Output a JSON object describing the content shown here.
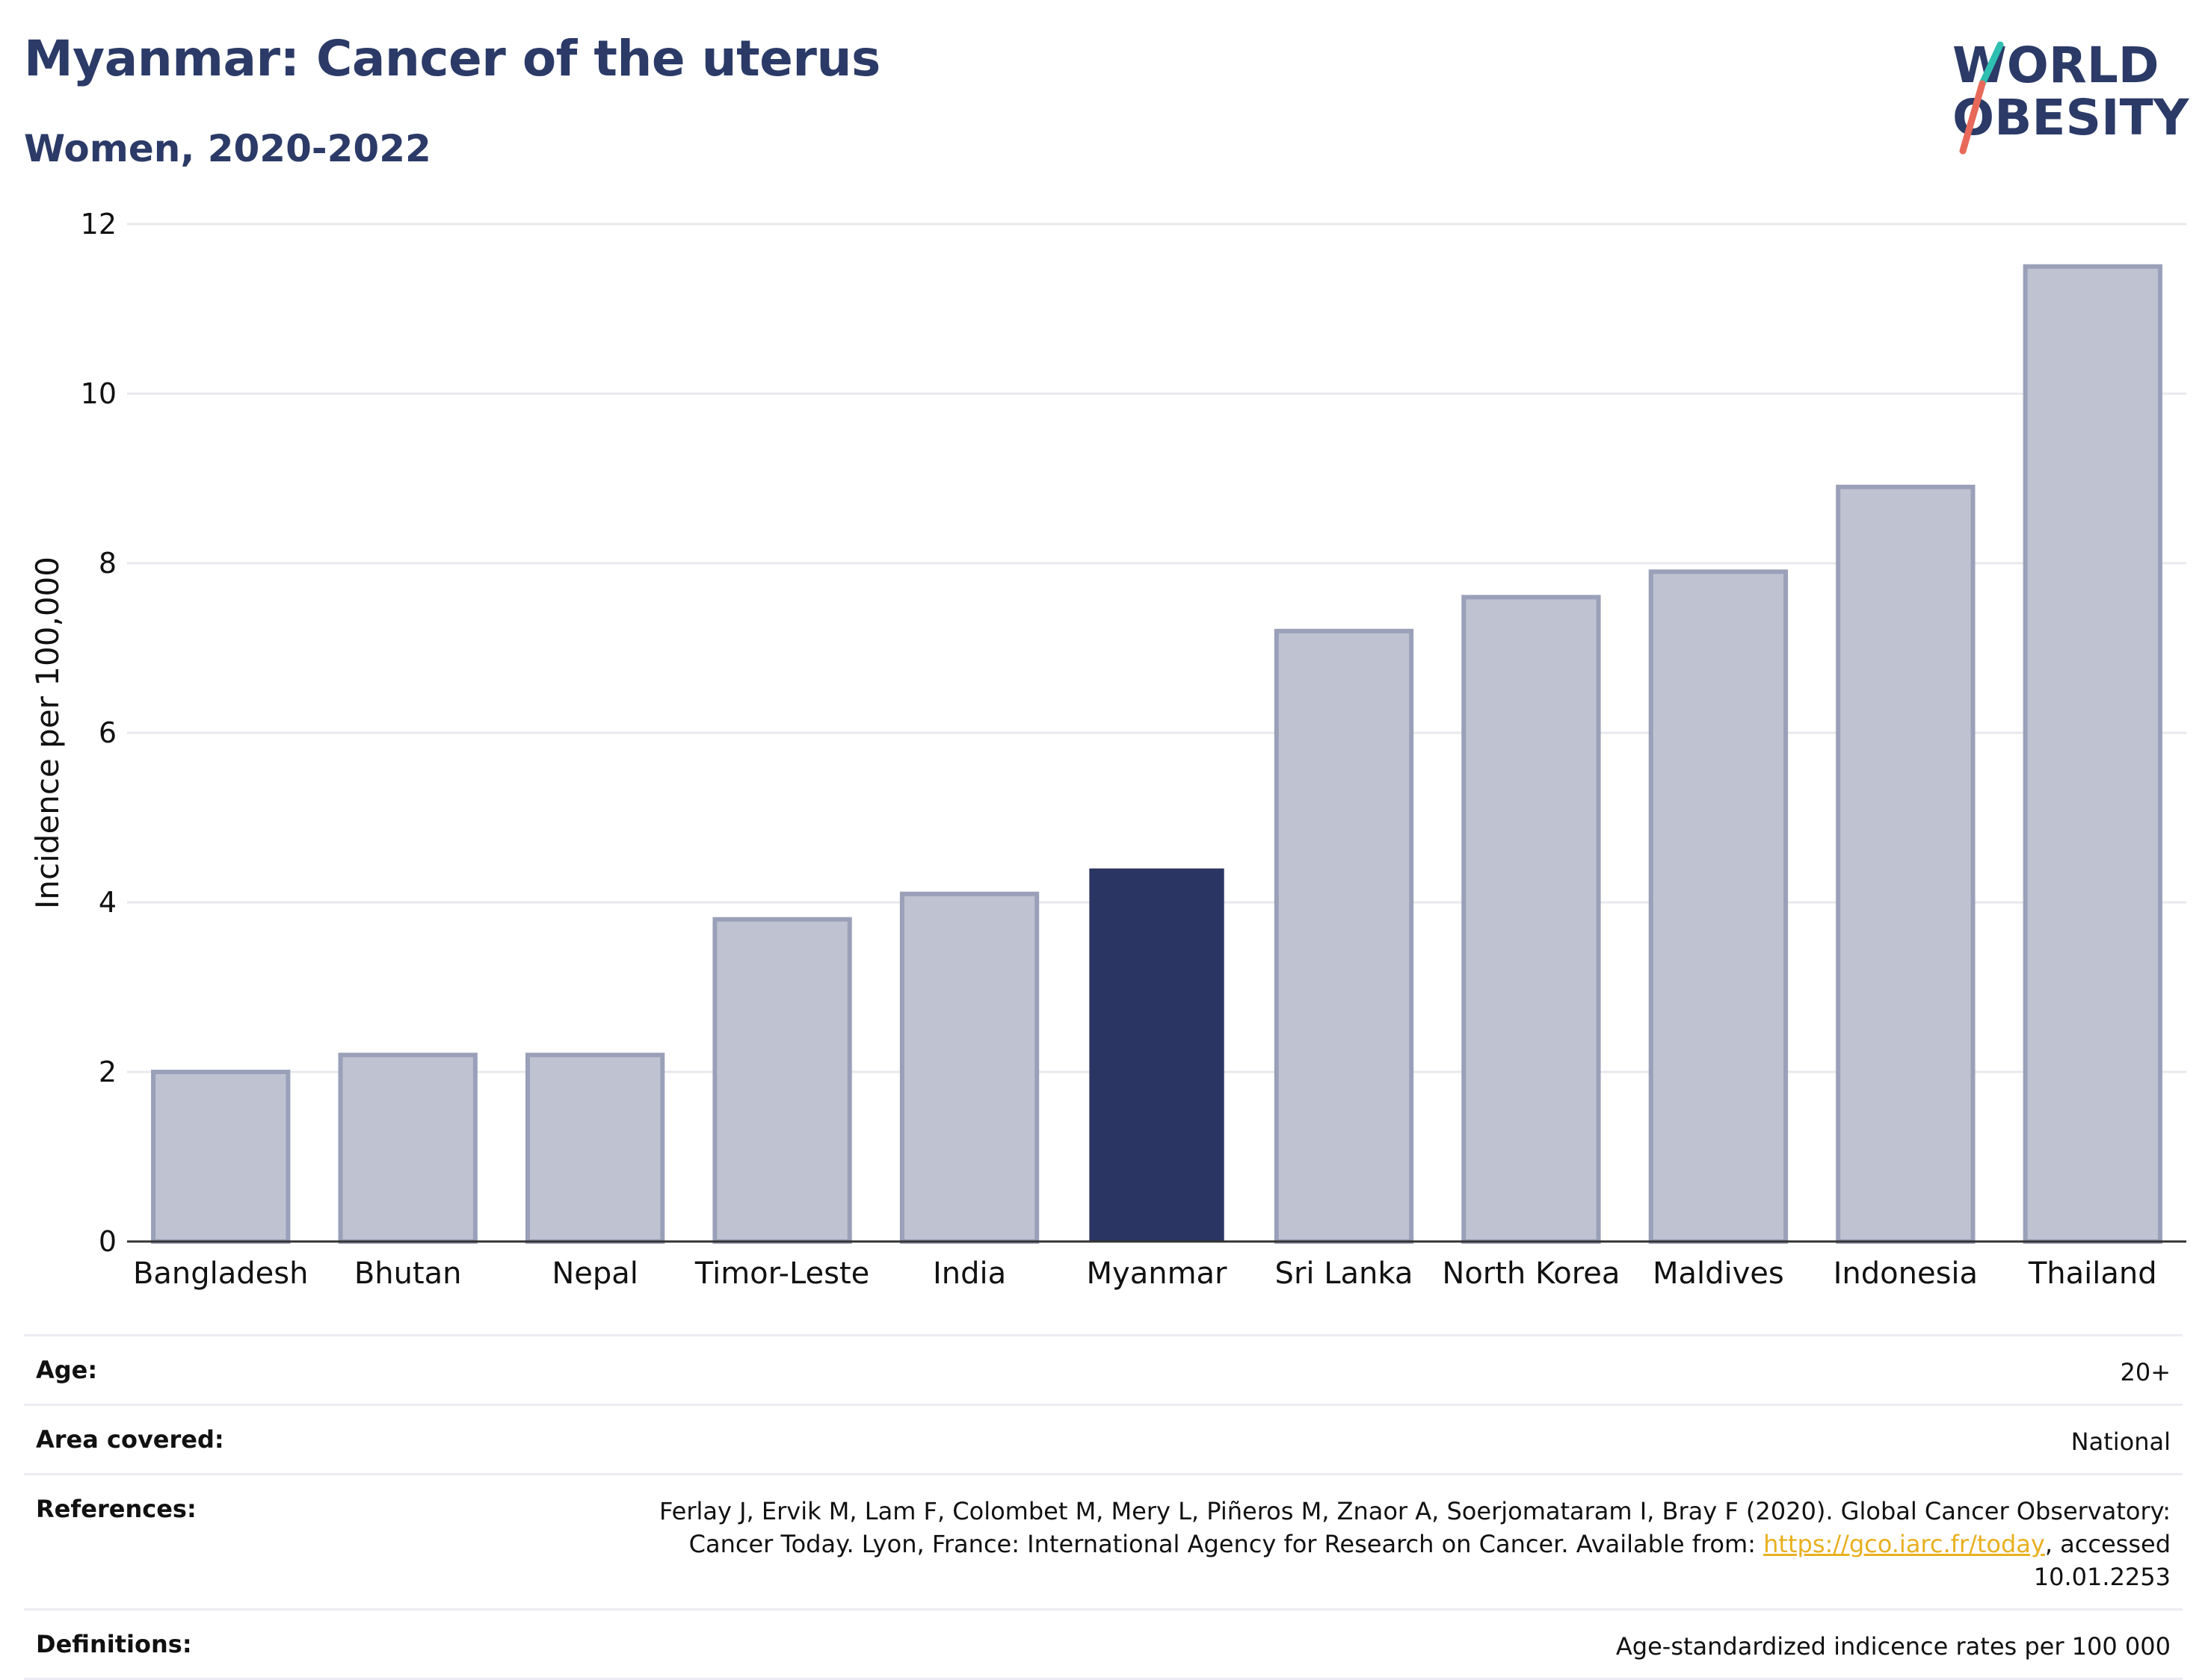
{
  "header": {
    "title": "Myanmar: Cancer of the uterus",
    "subtitle": "Women, 2020-2022"
  },
  "logo": {
    "line1": "WORLD",
    "line2": "OBESITY",
    "colors": {
      "teal": "#2ebfb0",
      "coral": "#e8685a",
      "navy": "#2b3a67"
    }
  },
  "chart_data": {
    "type": "bar",
    "categories": [
      "Bangladesh",
      "Bhutan",
      "Nepal",
      "Timor-Leste",
      "India",
      "Myanmar",
      "Sri Lanka",
      "North Korea",
      "Maldives",
      "Indonesia",
      "Thailand"
    ],
    "values": [
      2.0,
      2.2,
      2.2,
      3.8,
      4.1,
      4.4,
      7.2,
      7.6,
      7.9,
      8.9,
      11.5
    ],
    "highlight": "Myanmar",
    "ylabel": "Incidence per 100,000",
    "xlabel": "",
    "ylim": [
      0,
      12
    ],
    "yticks": [
      0,
      2,
      4,
      6,
      8,
      10,
      12
    ],
    "grid": true,
    "colors": {
      "bar": "#bfc3d1",
      "bar_edge": "#9aa0b8",
      "highlight": "#2b3563",
      "grid": "#e8e8ee",
      "axis": "#333333"
    }
  },
  "meta": {
    "age": {
      "label": "Age:",
      "value": "20+"
    },
    "area": {
      "label": "Area covered:",
      "value": "National"
    },
    "references": {
      "label": "References:",
      "text_before": "Ferlay J, Ervik M, Lam F, Colombet M, Mery L, Piñeros M, Znaor A, Soerjomataram I, Bray F (2020). Global Cancer Observatory: Cancer Today. Lyon, France: International Agency for Research on Cancer. Available from: ",
      "link": "https://gco.iarc.fr/today",
      "text_after": ", accessed 10.01.2253"
    },
    "definitions": {
      "label": "Definitions:",
      "value": "Age-standardized indicence rates per 100 000"
    }
  }
}
